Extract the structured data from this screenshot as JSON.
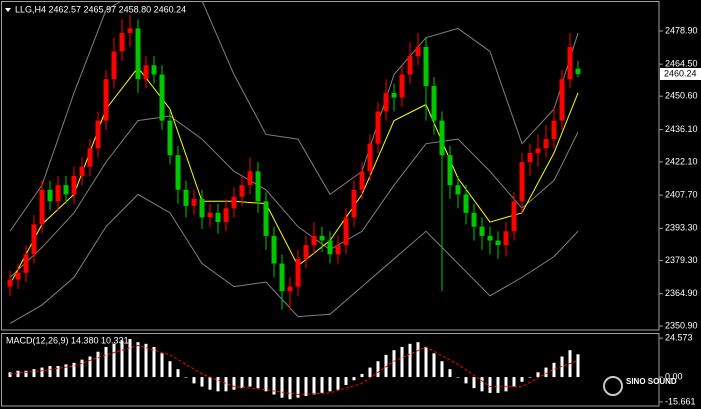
{
  "chart_data": [
    {
      "type": "candlestick",
      "title": "LLG,H4  2462.57 2465.97 2458.80 2460.24",
      "up_color": "#ff0000",
      "down_color": "#00c800",
      "open": [
        2368,
        2371,
        2374,
        2382,
        2395,
        2410,
        2405,
        2412,
        2408,
        2416,
        2420,
        2428,
        2440,
        2458,
        2470,
        2478,
        2480,
        2458,
        2464,
        2460,
        2440,
        2425,
        2410,
        2403,
        2406,
        2398,
        2400,
        2396,
        2402,
        2407,
        2412,
        2418,
        2405,
        2390,
        2378,
        2366,
        2368,
        2380,
        2386,
        2390,
        2388,
        2382,
        2386,
        2398,
        2410,
        2418,
        2430,
        2444,
        2452,
        2450,
        2460,
        2468,
        2472,
        2455,
        2440,
        2425,
        2412,
        2408,
        2400,
        2394,
        2390,
        2388,
        2386,
        2392,
        2405,
        2422,
        2426,
        2428,
        2432,
        2440,
        2458,
        2462.57
      ],
      "high": [
        2375,
        2378,
        2386,
        2399,
        2414,
        2414,
        2416,
        2416,
        2420,
        2424,
        2432,
        2444,
        2462,
        2476,
        2484,
        2486,
        2484,
        2468,
        2468,
        2464,
        2444,
        2429,
        2414,
        2410,
        2410,
        2404,
        2404,
        2406,
        2411,
        2416,
        2424,
        2422,
        2409,
        2394,
        2382,
        2372,
        2384,
        2390,
        2396,
        2394,
        2392,
        2390,
        2402,
        2414,
        2422,
        2434,
        2448,
        2458,
        2456,
        2464,
        2474,
        2478,
        2476,
        2459,
        2444,
        2429,
        2416,
        2412,
        2404,
        2398,
        2394,
        2392,
        2396,
        2409,
        2426,
        2430,
        2434,
        2438,
        2446,
        2462,
        2478,
        2465.97
      ],
      "low": [
        2364,
        2367,
        2370,
        2378,
        2391,
        2401,
        2401,
        2404,
        2404,
        2412,
        2416,
        2424,
        2436,
        2454,
        2466,
        2472,
        2452,
        2454,
        2456,
        2436,
        2421,
        2404,
        2398,
        2399,
        2393,
        2394,
        2391,
        2392,
        2398,
        2403,
        2408,
        2400,
        2384,
        2372,
        2358,
        2358,
        2364,
        2376,
        2382,
        2383,
        2378,
        2378,
        2382,
        2394,
        2406,
        2414,
        2426,
        2440,
        2444,
        2446,
        2456,
        2464,
        2440,
        2434,
        2366,
        2406,
        2402,
        2395,
        2388,
        2384,
        2382,
        2380,
        2381,
        2388,
        2400,
        2416,
        2420,
        2424,
        2428,
        2436,
        2454,
        2458.8
      ],
      "close": [
        2371,
        2374,
        2382,
        2395,
        2410,
        2405,
        2412,
        2408,
        2416,
        2420,
        2428,
        2440,
        2458,
        2470,
        2478,
        2480,
        2458,
        2464,
        2460,
        2440,
        2425,
        2410,
        2403,
        2406,
        2398,
        2400,
        2396,
        2402,
        2407,
        2412,
        2418,
        2405,
        2390,
        2378,
        2366,
        2368,
        2380,
        2386,
        2390,
        2388,
        2382,
        2386,
        2398,
        2410,
        2418,
        2430,
        2444,
        2452,
        2450,
        2460,
        2468,
        2472,
        2455,
        2440,
        2425,
        2412,
        2408,
        2400,
        2394,
        2390,
        2388,
        2386,
        2392,
        2405,
        2422,
        2426,
        2428,
        2432,
        2440,
        2458,
        2472,
        2460.24
      ],
      "overlays": [
        {
          "color": "#808080",
          "x": [
            0,
            4,
            8,
            12,
            16,
            20,
            24,
            28,
            32,
            36,
            40,
            44,
            48,
            52,
            56,
            60,
            64,
            68,
            71
          ],
          "values": [
            2392,
            2412,
            2452,
            2488,
            2496,
            2498,
            2492,
            2460,
            2434,
            2432,
            2408,
            2418,
            2460,
            2476,
            2480,
            2470,
            2430,
            2445,
            2478
          ]
        },
        {
          "color": "#808080",
          "x": [
            0,
            4,
            8,
            12,
            16,
            20,
            24,
            28,
            32,
            36,
            40,
            44,
            48,
            52,
            56,
            60,
            64,
            68,
            71
          ],
          "values": [
            2372,
            2385,
            2400,
            2422,
            2440,
            2442,
            2432,
            2418,
            2410,
            2394,
            2384,
            2392,
            2412,
            2430,
            2432,
            2418,
            2402,
            2414,
            2435
          ]
        },
        {
          "color": "#808080",
          "x": [
            0,
            4,
            8,
            12,
            16,
            20,
            24,
            28,
            32,
            36,
            40,
            44,
            48,
            52,
            56,
            60,
            64,
            68,
            71
          ],
          "values": [
            2352,
            2360,
            2372,
            2394,
            2408,
            2400,
            2378,
            2368,
            2370,
            2355,
            2356,
            2368,
            2380,
            2392,
            2378,
            2364,
            2372,
            2381,
            2392
          ]
        },
        {
          "color": "#ffff00",
          "x": [
            0,
            4,
            8,
            12,
            16,
            20,
            24,
            28,
            32,
            36,
            40,
            44,
            48,
            52,
            56,
            60,
            64,
            68,
            71
          ],
          "values": [
            2369,
            2395,
            2408,
            2445,
            2463,
            2445,
            2405,
            2405,
            2404,
            2377,
            2388,
            2408,
            2440,
            2447,
            2415,
            2396,
            2400,
            2426,
            2452
          ]
        }
      ],
      "ylim": [
        2349.17,
        2491.9
      ],
      "yticks": [
        {
          "value": 2478.9,
          "label": "2478.90"
        },
        {
          "value": 2464.5,
          "label": "2464.50"
        },
        {
          "value": 2450.6,
          "label": "2450.60"
        },
        {
          "value": 2436.1,
          "label": "2436.10"
        },
        {
          "value": 2422.1,
          "label": "2422.10"
        },
        {
          "value": 2407.7,
          "label": "2407.70"
        },
        {
          "value": 2393.3,
          "label": "2393.30"
        },
        {
          "value": 2379.3,
          "label": "2379.30"
        },
        {
          "value": 2364.9,
          "label": "2364.90"
        },
        {
          "value": 2350.9,
          "label": "2350.90"
        }
      ]
    },
    {
      "type": "macd",
      "title": "MACD(12,26,9) 14.380 10.331",
      "hist_color": "#ffffff",
      "histogram": [
        3,
        4,
        4,
        5,
        6,
        7,
        7,
        8,
        9,
        11,
        13,
        16,
        19,
        21,
        23,
        24,
        22,
        21,
        19,
        15,
        10,
        5,
        0,
        -4,
        -6,
        -8,
        -9,
        -9,
        -8,
        -7,
        -6,
        -7,
        -9,
        -11,
        -13,
        -14,
        -13,
        -12,
        -11,
        -10,
        -9,
        -8,
        -5,
        -2,
        2,
        6,
        10,
        14,
        17,
        19,
        21,
        22,
        19,
        15,
        10,
        5,
        0,
        -4,
        -7,
        -9,
        -10,
        -10,
        -9,
        -6,
        -3,
        0,
        3,
        6,
        9,
        13,
        17,
        14.38
      ],
      "signal": {
        "color": "#ff0000",
        "x": [
          0,
          4,
          8,
          12,
          16,
          20,
          24,
          28,
          32,
          36,
          40,
          44,
          48,
          52,
          56,
          60,
          64,
          68,
          71
        ],
        "values": [
          2,
          4,
          7,
          14,
          20,
          14,
          2,
          -6,
          -8,
          -11,
          -10,
          -4,
          10,
          19,
          8,
          -6,
          -6,
          5,
          10.331
        ]
      },
      "ylim": [
        -18.26,
        27.82
      ],
      "yticks": [
        24.573,
        {
          "value": 0,
          "label": "0.00"
        },
        -15.661
      ]
    }
  ],
  "logo": "SINO SOUND"
}
